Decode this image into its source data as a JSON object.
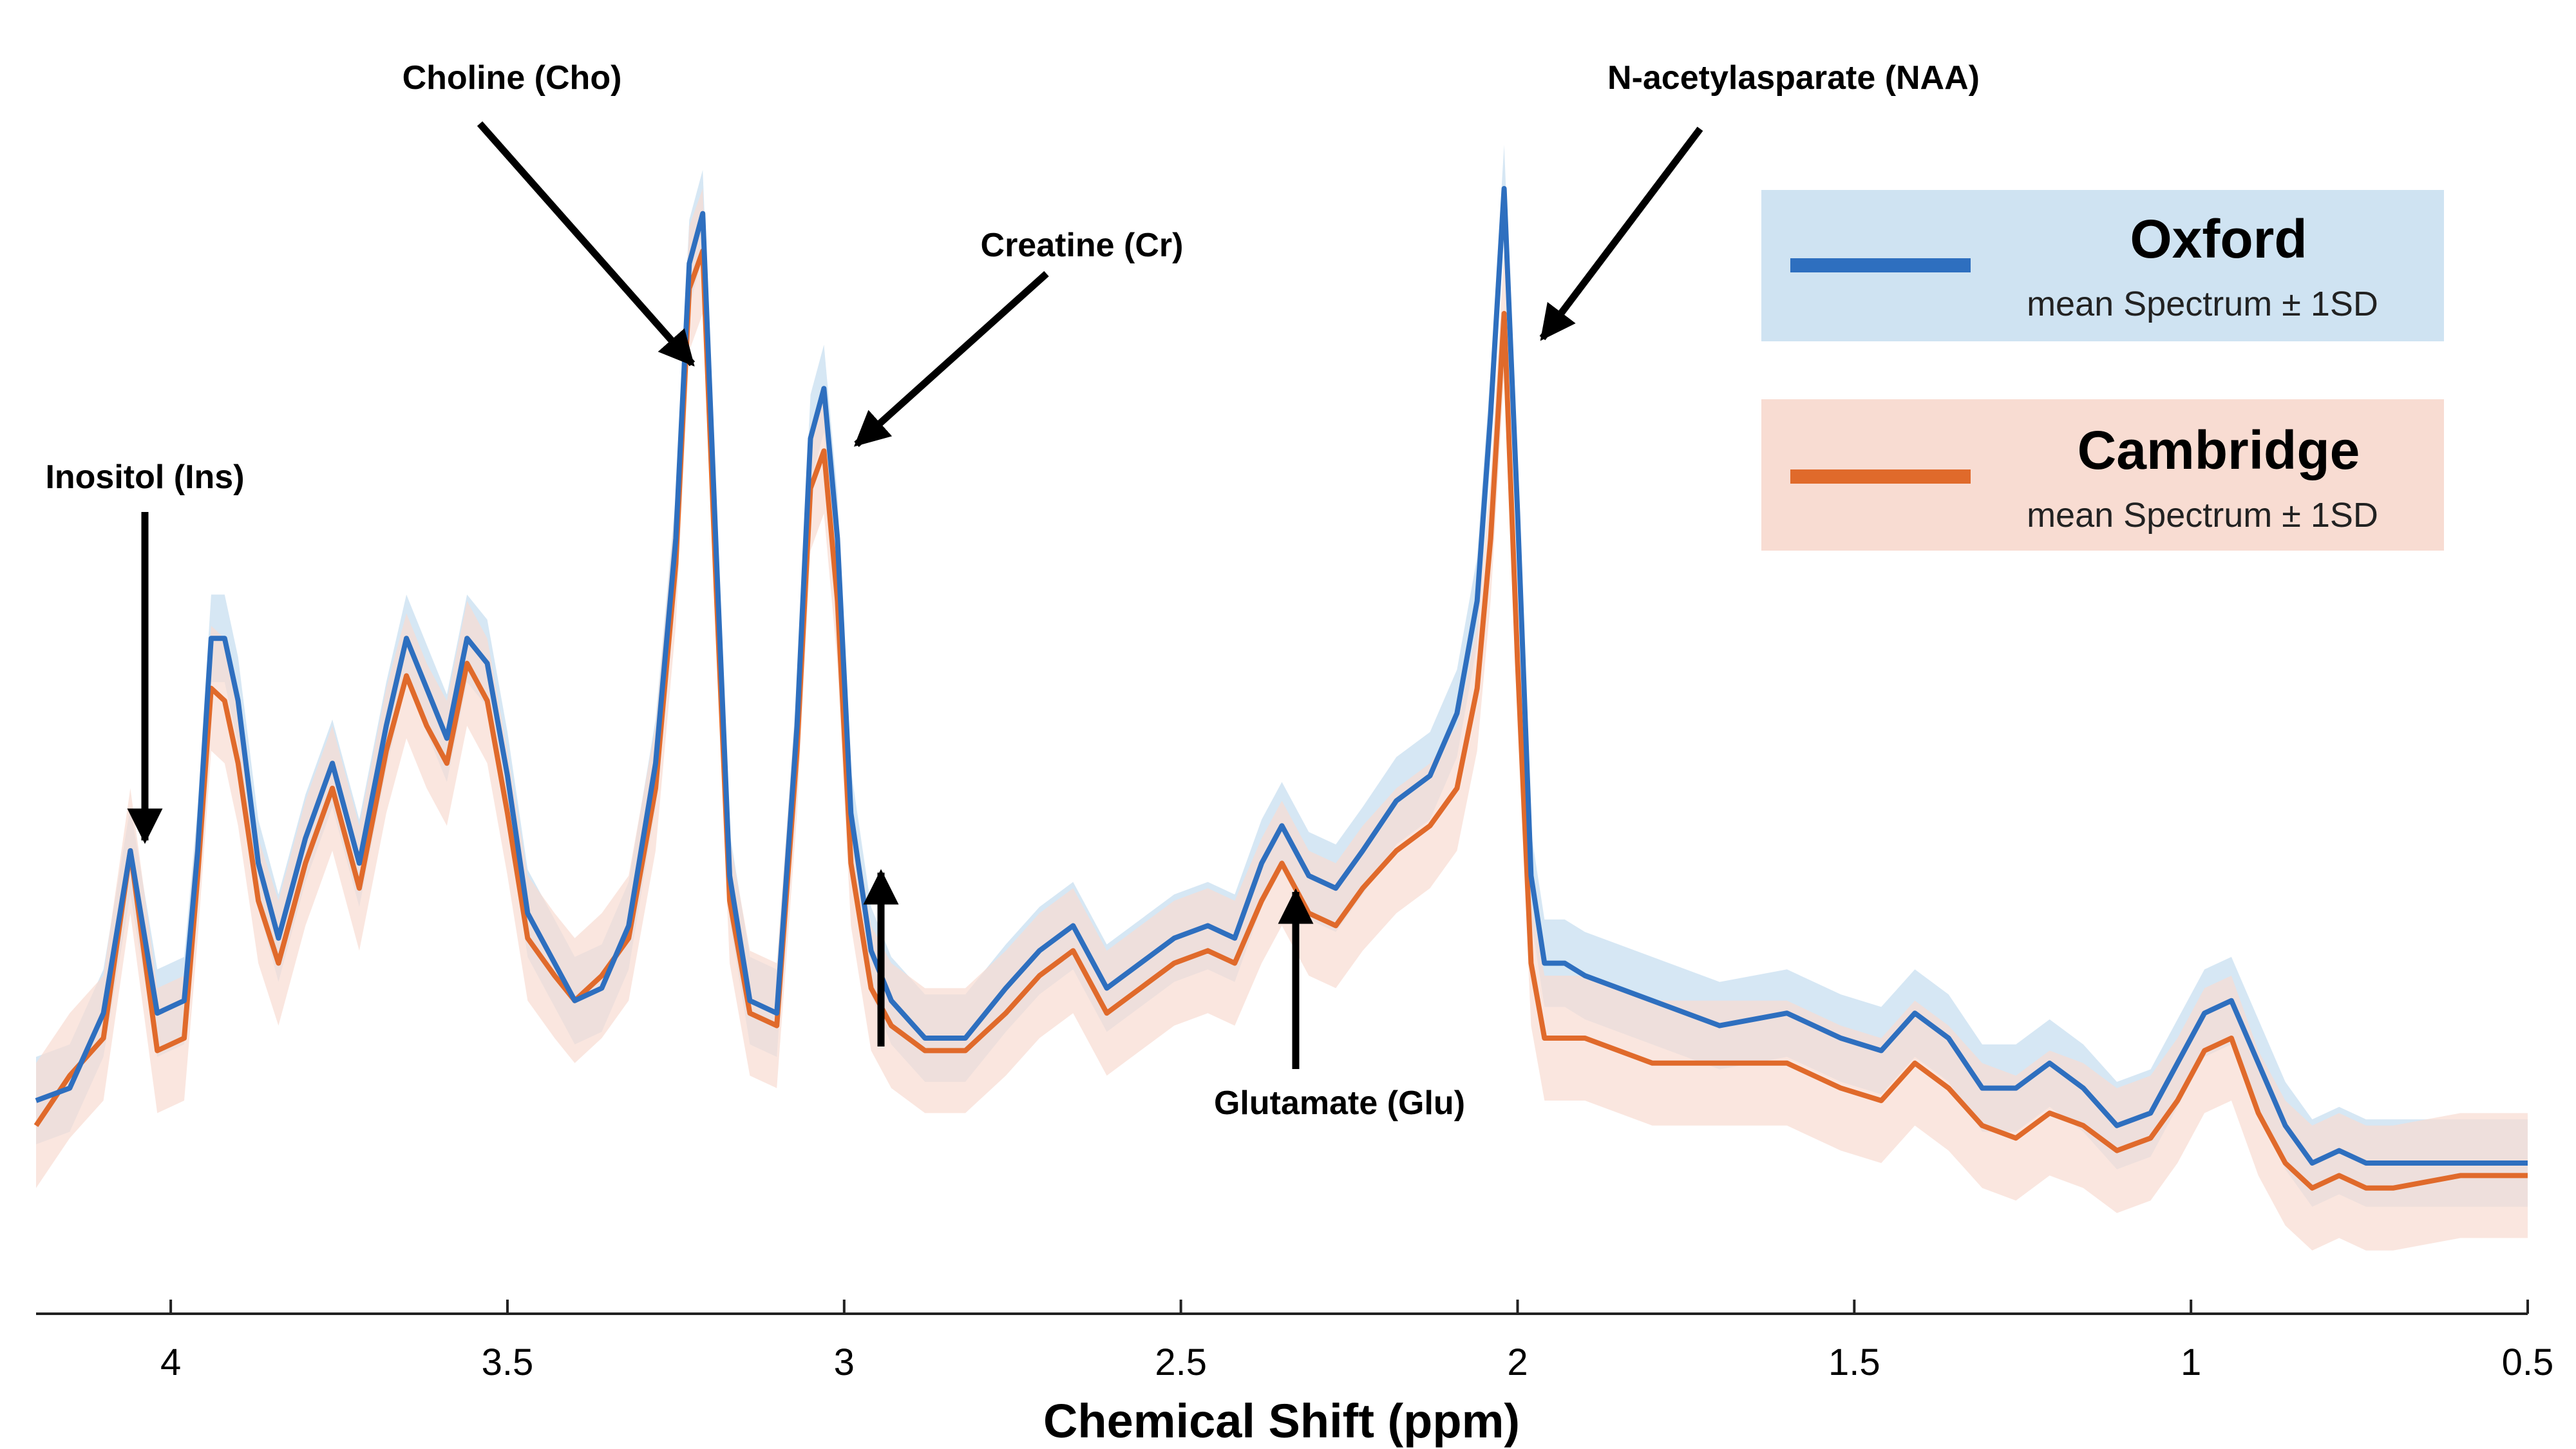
{
  "chart_data": {
    "type": "line",
    "title": "",
    "xlabel": "Chemical Shift (ppm)",
    "ylabel": "",
    "x_reversed": true,
    "xlim": [
      4.2,
      0.5
    ],
    "ylim": [
      0,
      1
    ],
    "xticks": [
      4,
      3.5,
      3,
      2.5,
      2,
      1.5,
      1,
      0.5
    ],
    "xtick_labels": [
      "4",
      "3.5",
      "3",
      "2.5",
      "2",
      "1.5",
      "1",
      "0.5"
    ],
    "grid": false,
    "legend_position": "top-right",
    "x": [
      4.2,
      4.15,
      4.1,
      4.06,
      4.02,
      3.98,
      3.96,
      3.94,
      3.92,
      3.9,
      3.87,
      3.84,
      3.8,
      3.76,
      3.72,
      3.68,
      3.65,
      3.62,
      3.59,
      3.56,
      3.53,
      3.5,
      3.47,
      3.43,
      3.4,
      3.36,
      3.32,
      3.28,
      3.25,
      3.23,
      3.21,
      3.19,
      3.17,
      3.14,
      3.1,
      3.07,
      3.05,
      3.03,
      3.01,
      2.99,
      2.96,
      2.93,
      2.88,
      2.82,
      2.76,
      2.71,
      2.66,
      2.61,
      2.56,
      2.51,
      2.46,
      2.42,
      2.38,
      2.35,
      2.31,
      2.27,
      2.23,
      2.18,
      2.13,
      2.09,
      2.06,
      2.04,
      2.02,
      2.0,
      1.98,
      1.96,
      1.93,
      1.9,
      1.8,
      1.7,
      1.6,
      1.52,
      1.46,
      1.41,
      1.36,
      1.31,
      1.26,
      1.21,
      1.16,
      1.11,
      1.06,
      1.02,
      0.98,
      0.94,
      0.9,
      0.86,
      0.82,
      0.78,
      0.74,
      0.7,
      0.6,
      0.5
    ],
    "series": [
      {
        "name": "Oxford",
        "subtitle": "mean Spectrum ± 1SD",
        "color": "#2e6fbf",
        "band_color": "#cfe3f2",
        "sd": 0.035,
        "values": [
          0.15,
          0.16,
          0.22,
          0.35,
          0.22,
          0.23,
          0.35,
          0.52,
          0.52,
          0.47,
          0.34,
          0.28,
          0.36,
          0.42,
          0.34,
          0.45,
          0.52,
          0.48,
          0.44,
          0.52,
          0.5,
          0.41,
          0.3,
          0.26,
          0.23,
          0.24,
          0.29,
          0.42,
          0.6,
          0.82,
          0.86,
          0.59,
          0.33,
          0.23,
          0.22,
          0.45,
          0.68,
          0.72,
          0.6,
          0.38,
          0.27,
          0.23,
          0.2,
          0.2,
          0.24,
          0.27,
          0.29,
          0.24,
          0.26,
          0.28,
          0.29,
          0.28,
          0.34,
          0.37,
          0.33,
          0.32,
          0.35,
          0.39,
          0.41,
          0.46,
          0.55,
          0.7,
          0.88,
          0.62,
          0.33,
          0.26,
          0.26,
          0.25,
          0.23,
          0.21,
          0.22,
          0.2,
          0.19,
          0.22,
          0.2,
          0.16,
          0.16,
          0.18,
          0.16,
          0.13,
          0.14,
          0.18,
          0.22,
          0.23,
          0.18,
          0.13,
          0.1,
          0.11,
          0.1,
          0.1,
          0.1,
          0.1
        ]
      },
      {
        "name": "Cambridge",
        "subtitle": "mean Spectrum ± 1SD",
        "color": "#e06a2b",
        "band_color": "#f8dcd2",
        "sd": 0.05,
        "values": [
          0.13,
          0.17,
          0.2,
          0.35,
          0.19,
          0.2,
          0.33,
          0.48,
          0.47,
          0.42,
          0.31,
          0.26,
          0.34,
          0.4,
          0.32,
          0.43,
          0.49,
          0.45,
          0.42,
          0.5,
          0.47,
          0.38,
          0.28,
          0.25,
          0.23,
          0.25,
          0.28,
          0.4,
          0.58,
          0.8,
          0.83,
          0.56,
          0.31,
          0.22,
          0.21,
          0.43,
          0.64,
          0.67,
          0.55,
          0.34,
          0.24,
          0.21,
          0.19,
          0.19,
          0.22,
          0.25,
          0.27,
          0.22,
          0.24,
          0.26,
          0.27,
          0.26,
          0.31,
          0.34,
          0.3,
          0.29,
          0.32,
          0.35,
          0.37,
          0.4,
          0.48,
          0.6,
          0.78,
          0.5,
          0.26,
          0.2,
          0.2,
          0.2,
          0.18,
          0.18,
          0.18,
          0.16,
          0.15,
          0.18,
          0.16,
          0.13,
          0.12,
          0.14,
          0.13,
          0.11,
          0.12,
          0.15,
          0.19,
          0.2,
          0.14,
          0.1,
          0.08,
          0.09,
          0.08,
          0.08,
          0.09,
          0.09
        ]
      }
    ],
    "annotations": [
      {
        "label": "Choline (Cho)",
        "target_x": 3.21,
        "target_y": 0.8,
        "arrow_dir": "from-upper-left"
      },
      {
        "label": "Creatine (Cr)",
        "target_x": 3.0,
        "target_y": 0.68,
        "arrow_dir": "from-upper-right"
      },
      {
        "label": "N-acetylasparate (NAA)",
        "target_x": 1.98,
        "target_y": 0.75,
        "arrow_dir": "from-upper-right"
      },
      {
        "label": "Inositol (Ins)",
        "target_x": 4.06,
        "target_y": 0.37,
        "arrow_dir": "from-above"
      },
      {
        "label": "Glutamate (Glu)",
        "target_x": 2.35,
        "target_y": 0.32,
        "arrow_dir": "from-below"
      },
      {
        "label": "",
        "target_x": 2.96,
        "target_y": 0.32,
        "arrow_dir": "from-below"
      }
    ]
  }
}
